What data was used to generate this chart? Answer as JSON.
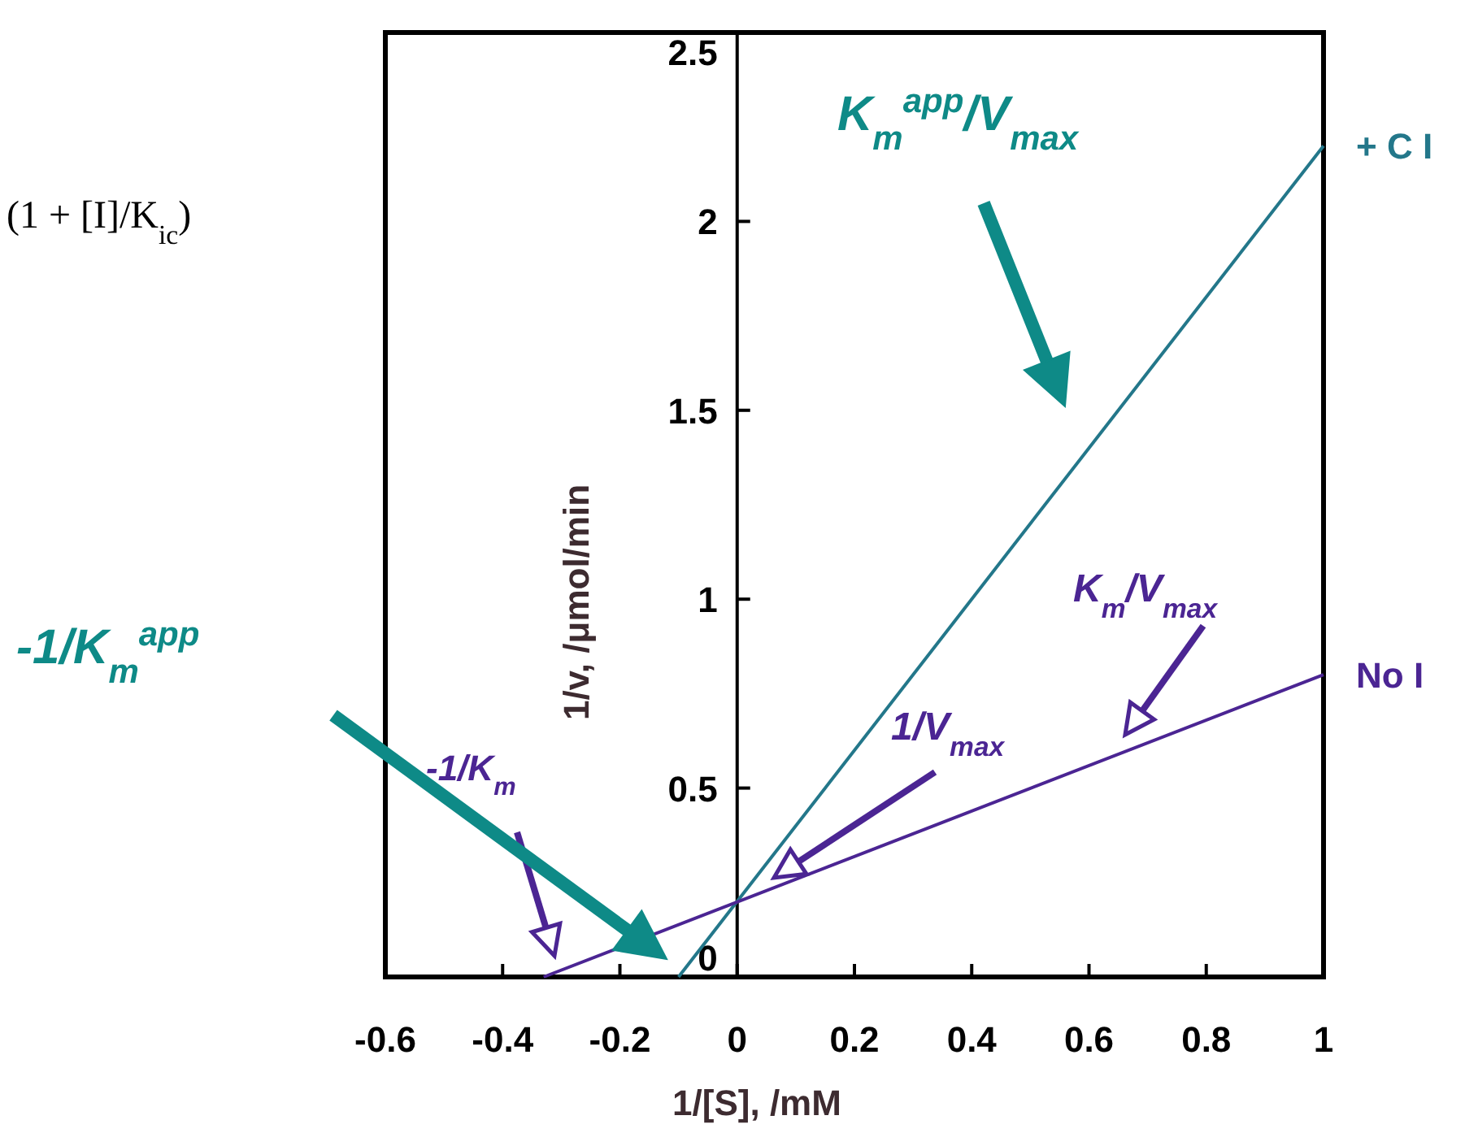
{
  "chart_data": {
    "type": "line",
    "xlabel": "1/[S], /mM",
    "ylabel": "1/v, /μmol/min",
    "xlim": [
      -0.6,
      1
    ],
    "ylim": [
      0,
      2.5
    ],
    "xticks": [
      -0.6,
      -0.4,
      -0.2,
      0,
      0.2,
      0.4,
      0.6,
      0.8,
      1
    ],
    "yticks": [
      0,
      0.5,
      1,
      1.5,
      2,
      2.5
    ],
    "legend": false,
    "marker": "none",
    "line_style": "solid",
    "series": [
      {
        "name": "+ C I",
        "color": "#23778a",
        "x": [
          -0.1,
          1
        ],
        "values": [
          0,
          2.2
        ]
      },
      {
        "name": "No I",
        "color": "#4b2593",
        "x": [
          -0.33,
          1
        ],
        "values": [
          0,
          0.8
        ]
      }
    ],
    "annotations": [
      "K$_{m}$$^{app}$/V$_{max}$",
      "K$_{m}$/V$_{max}$",
      "1/V$_{max}$",
      "-1/K$_{m}$",
      "-1/K$_{m}$$^{app}$",
      "(1 + [I]/K$_{ic}$)"
    ]
  }
}
